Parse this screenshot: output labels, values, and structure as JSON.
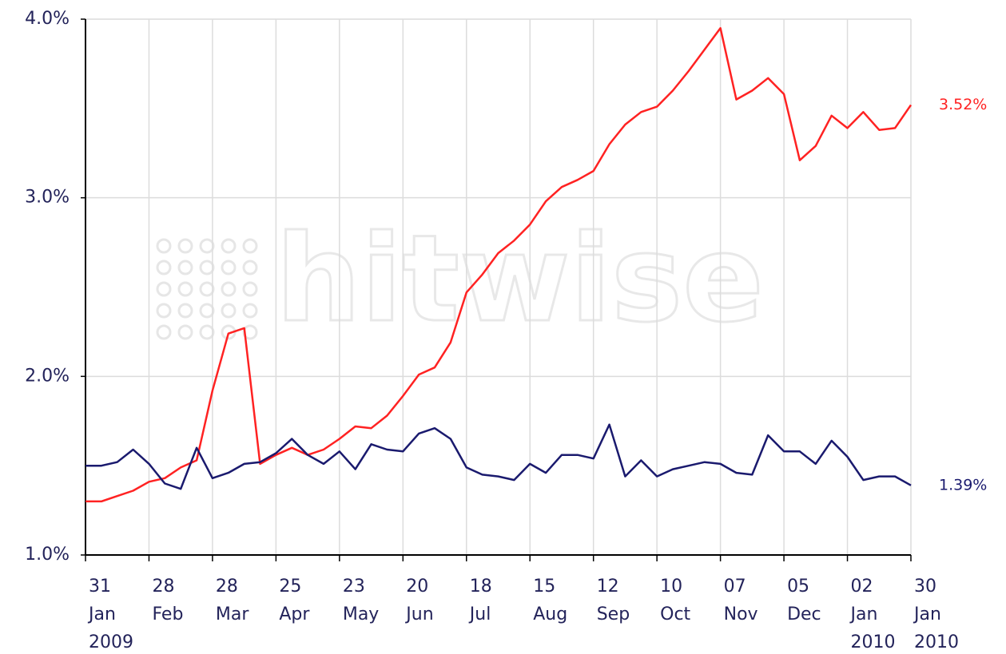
{
  "chart_data": {
    "type": "line",
    "watermark": "hitwise",
    "categories": [
      "31 Jan 2009",
      null,
      null,
      null,
      "28 Feb",
      null,
      null,
      null,
      "28 Mar",
      null,
      null,
      null,
      "25 Apr",
      null,
      null,
      null,
      "23 May",
      null,
      null,
      null,
      "20 Jun",
      null,
      null,
      null,
      "18 Jul",
      null,
      null,
      null,
      "15 Aug",
      null,
      null,
      null,
      "12 Sep",
      null,
      null,
      null,
      "10 Oct",
      null,
      null,
      null,
      "07 Nov",
      null,
      null,
      null,
      "05 Dec",
      null,
      null,
      null,
      "02 Jan 2010",
      null,
      null,
      null,
      "30 Jan 2010"
    ],
    "series": [
      {
        "color": "#ff2222",
        "values": [
          1.3,
          1.3,
          1.33,
          1.36,
          1.41,
          1.43,
          1.49,
          1.53,
          1.92,
          2.24,
          2.27,
          1.51,
          1.56,
          1.6,
          1.56,
          1.59,
          1.65,
          1.72,
          1.71,
          1.78,
          1.89,
          2.01,
          2.05,
          2.19,
          2.47,
          2.57,
          2.69,
          2.76,
          2.85,
          2.98,
          3.06,
          3.1,
          3.15,
          3.3,
          3.41,
          3.48,
          3.51,
          3.6,
          3.71,
          3.83,
          3.95,
          3.55,
          3.6,
          3.67,
          3.58,
          3.21,
          3.29,
          3.46,
          3.39,
          3.48,
          3.38,
          3.39,
          3.52
        ],
        "value_labels": [
          null,
          null,
          null,
          null,
          null,
          null,
          null,
          null,
          null,
          null,
          null,
          null,
          null,
          null,
          null,
          null,
          null,
          null,
          null,
          null,
          null,
          null,
          null,
          null,
          null,
          null,
          null,
          null,
          null,
          null,
          null,
          null,
          null,
          null,
          null,
          null,
          null,
          null,
          null,
          null,
          null,
          null,
          null,
          null,
          null,
          null,
          null,
          null,
          null,
          null,
          null,
          null,
          "3.52%"
        ]
      },
      {
        "color": "#1a1a6e",
        "values": [
          1.5,
          1.5,
          1.52,
          1.59,
          1.51,
          1.4,
          1.37,
          1.6,
          1.43,
          1.46,
          1.51,
          1.52,
          1.57,
          1.65,
          1.56,
          1.51,
          1.58,
          1.48,
          1.62,
          1.59,
          1.58,
          1.68,
          1.71,
          1.65,
          1.49,
          1.45,
          1.44,
          1.42,
          1.51,
          1.46,
          1.56,
          1.56,
          1.54,
          1.73,
          1.44,
          1.53,
          1.44,
          1.48,
          1.5,
          1.52,
          1.51,
          1.46,
          1.45,
          1.67,
          1.58,
          1.58,
          1.51,
          1.64,
          1.55,
          1.42,
          1.44,
          1.44,
          1.39
        ],
        "value_labels": [
          null,
          null,
          null,
          null,
          null,
          null,
          null,
          null,
          null,
          null,
          null,
          null,
          null,
          null,
          null,
          null,
          null,
          null,
          null,
          null,
          null,
          null,
          null,
          null,
          null,
          null,
          null,
          null,
          null,
          null,
          null,
          null,
          null,
          null,
          null,
          null,
          null,
          null,
          null,
          null,
          null,
          null,
          null,
          null,
          null,
          null,
          null,
          null,
          null,
          null,
          null,
          null,
          "1.39%"
        ]
      }
    ],
    "ylim": [
      1,
      4
    ],
    "yticks": [
      {
        "value": 1,
        "label": "1.0%"
      },
      {
        "value": 2,
        "label": "2.0%"
      },
      {
        "value": 3,
        "label": "3.0%"
      },
      {
        "value": 4,
        "label": "4.0%"
      }
    ],
    "grid": true
  }
}
